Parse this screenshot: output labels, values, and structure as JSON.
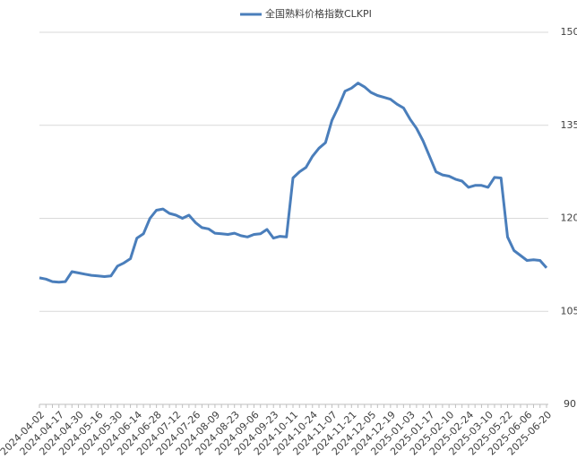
{
  "chart_data": {
    "type": "line",
    "categories": [
      "2024-04-02",
      null,
      null,
      "2024-04-17",
      null,
      null,
      "2024-04-30",
      null,
      null,
      "2024-05-16",
      null,
      null,
      "2024-05-30",
      null,
      null,
      "2024-06-14",
      null,
      null,
      "2024-06-28",
      null,
      null,
      "2024-07-12",
      null,
      null,
      "2024-07-26",
      null,
      null,
      "2024-08-09",
      null,
      null,
      "2024-08-23",
      null,
      null,
      "2024-09-06",
      null,
      null,
      "2024-09-23",
      null,
      null,
      "2024-10-11",
      null,
      null,
      "2024-10-24",
      null,
      null,
      "2024-11-07",
      null,
      null,
      "2024-11-21",
      null,
      null,
      "2024-12-05",
      null,
      null,
      "2024-12-19",
      null,
      null,
      "2025-01-03",
      null,
      null,
      "2025-01-17",
      null,
      null,
      "2025-02-10",
      null,
      null,
      "2025-02-24",
      null,
      null,
      "2025-03-10",
      null,
      null,
      "2025-05-22",
      null,
      null,
      "2025-06-06",
      null,
      null,
      "2025-06-20"
    ],
    "series": [
      {
        "name": "全国熟料价格指数CLKPI",
        "color": "#4a7ebb",
        "values": [
          110.4,
          110.2,
          109.8,
          109.7,
          109.8,
          111.4,
          111.2,
          111.0,
          110.8,
          110.7,
          110.6,
          110.7,
          112.3,
          112.8,
          113.5,
          116.8,
          117.5,
          120.0,
          121.3,
          121.5,
          120.8,
          120.5,
          120.0,
          120.5,
          119.3,
          118.5,
          118.3,
          117.6,
          117.5,
          117.4,
          117.6,
          117.2,
          117.0,
          117.4,
          117.5,
          118.2,
          116.8,
          117.1,
          117.0,
          126.5,
          127.5,
          128.2,
          130.0,
          131.3,
          132.2,
          135.8,
          138.0,
          140.5,
          141.0,
          141.8,
          141.2,
          140.3,
          139.8,
          139.5,
          139.2,
          138.4,
          137.8,
          136.0,
          134.5,
          132.5,
          130.0,
          127.5,
          127.0,
          126.8,
          126.3,
          126.0,
          125.0,
          125.3,
          125.3,
          125.0,
          126.6,
          126.5,
          117.0,
          114.8,
          114.0,
          113.2,
          113.3,
          113.2,
          112.0
        ]
      }
    ],
    "ylim": [
      90,
      150
    ],
    "yticks": [
      90,
      105,
      120,
      135,
      150
    ],
    "grid": true,
    "legend": "top"
  }
}
